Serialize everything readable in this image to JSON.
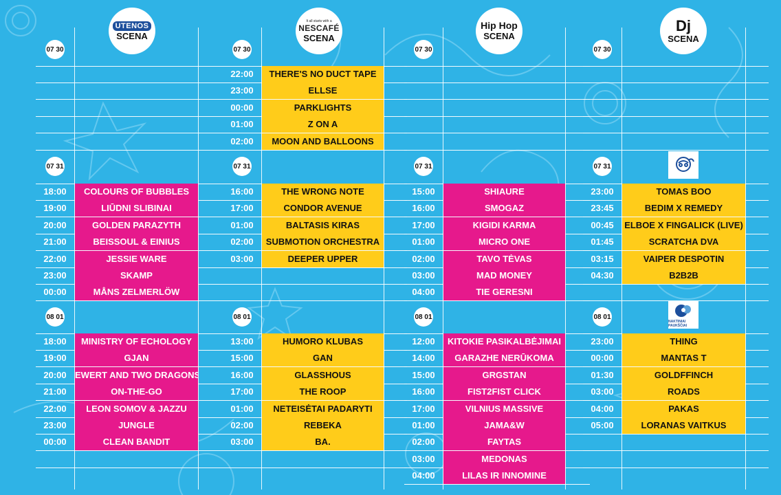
{
  "colors": {
    "background": "#2fb3e6",
    "pink": "#e6198c",
    "yellow": "#ffcc1a",
    "line": "#ffffff"
  },
  "stages": [
    {
      "id": "utenos",
      "brand": "UTENOS",
      "title": "",
      "scena": "SCENA",
      "tagline": ""
    },
    {
      "id": "nescafe",
      "brand": "NESCAFÉ",
      "tagline": "It all starts with a",
      "title": "",
      "scena": "SCENA"
    },
    {
      "id": "hiphop",
      "brand": "",
      "tagline": "",
      "title": "Hip Hop",
      "scena": "SCENA"
    },
    {
      "id": "dj",
      "brand": "",
      "tagline": "",
      "title": "Dj",
      "scena": "SCENA"
    }
  ],
  "dates": [
    "07 30",
    "07 31",
    "08 01"
  ],
  "dj_sponsor_logo_2_label": "NAKTINIAI PAUKŠČIAI",
  "schedule": {
    "utenos": {
      "d0730": [],
      "d0731": [
        {
          "time": "18:00",
          "artist": "COLOURS OF BUBBLES"
        },
        {
          "time": "19:00",
          "artist": "LIŪDNI SLIBINAI"
        },
        {
          "time": "20:00",
          "artist": "GOLDEN PARAZYTH"
        },
        {
          "time": "21:00",
          "artist": "BEISSOUL & EINIUS"
        },
        {
          "time": "22:00",
          "artist": "JESSIE WARE"
        },
        {
          "time": "23:00",
          "artist": "SKAMP"
        },
        {
          "time": "00:00",
          "artist": "MÅNS ZELMERLÖW"
        }
      ],
      "d0801": [
        {
          "time": "18:00",
          "artist": "MINISTRY OF ECHOLOGY"
        },
        {
          "time": "19:00",
          "artist": "GJAN"
        },
        {
          "time": "20:00",
          "artist": "EWERT AND TWO DRAGONS"
        },
        {
          "time": "21:00",
          "artist": "ON-THE-GO"
        },
        {
          "time": "22:00",
          "artist": "LEON SOMOV & JAZZU"
        },
        {
          "time": "23:00",
          "artist": "JUNGLE"
        },
        {
          "time": "00:00",
          "artist": "CLEAN BANDIT"
        }
      ]
    },
    "nescafe": {
      "d0730": [
        {
          "time": "22:00",
          "artist": "THERE'S NO DUCT TAPE"
        },
        {
          "time": "23:00",
          "artist": "ELLSE"
        },
        {
          "time": "00:00",
          "artist": "PARKLIGHTS"
        },
        {
          "time": "01:00",
          "artist": "Z ON A"
        },
        {
          "time": "02:00",
          "artist": "MOON AND BALLOONS"
        }
      ],
      "d0731": [
        {
          "time": "16:00",
          "artist": "THE WRONG NOTE"
        },
        {
          "time": "17:00",
          "artist": "CONDOR AVENUE"
        },
        {
          "time": "01:00",
          "artist": "BALTASIS KIRAS"
        },
        {
          "time": "02:00",
          "artist": "SUBMOTION ORCHESTRA"
        },
        {
          "time": "03:00",
          "artist": "DEEPER UPPER"
        }
      ],
      "d0801": [
        {
          "time": "13:00",
          "artist": "HUMORO KLUBAS"
        },
        {
          "time": "15:00",
          "artist": "GAN"
        },
        {
          "time": "16:00",
          "artist": "GLASSHOUS"
        },
        {
          "time": "17:00",
          "artist": "THE ROOP"
        },
        {
          "time": "01:00",
          "artist": "NETEISĖTAI PADARYTI"
        },
        {
          "time": "02:00",
          "artist": "REBEKA"
        },
        {
          "time": "03:00",
          "artist": "BA."
        }
      ]
    },
    "hiphop": {
      "d0730": [],
      "d0731": [
        {
          "time": "15:00",
          "artist": "SHIAURE"
        },
        {
          "time": "16:00",
          "artist": "SMOGAZ"
        },
        {
          "time": "17:00",
          "artist": "KIGIDI KARMA"
        },
        {
          "time": "01:00",
          "artist": "MICRO ONE"
        },
        {
          "time": "02:00",
          "artist": "TAVO TĖVAS"
        },
        {
          "time": "03:00",
          "artist": "MAD MONEY"
        },
        {
          "time": "04:00",
          "artist": "TIE GERESNI"
        }
      ],
      "d0801": [
        {
          "time": "12:00",
          "artist": "KITOKIE PASIKALBĖJIMAI"
        },
        {
          "time": "14:00",
          "artist": "GARAZHE NERŪKOMA"
        },
        {
          "time": "15:00",
          "artist": "GRGSTAN"
        },
        {
          "time": "16:00",
          "artist": "FIST2FIST CLICK"
        },
        {
          "time": "17:00",
          "artist": "VILNIUS MASSIVE"
        },
        {
          "time": "01:00",
          "artist": "JAMA&W"
        },
        {
          "time": "02:00",
          "artist": "FAYTAS"
        },
        {
          "time": "03:00",
          "artist": "MEDONAS"
        },
        {
          "time": "04:00",
          "artist": "LILAS IR INNOMINE"
        }
      ]
    },
    "dj": {
      "d0730": [],
      "d0731": [
        {
          "time": "23:00",
          "artist": "TOMAS BOO"
        },
        {
          "time": "23:45",
          "artist": "BEDIM X REMEDY"
        },
        {
          "time": "00:45",
          "artist": "ELBOE X FINGALICK (LIVE)"
        },
        {
          "time": "01:45",
          "artist": "SCRATCHA DVA"
        },
        {
          "time": "03:15",
          "artist": "VAIPER DESPOTIN"
        },
        {
          "time": "04:30",
          "artist": "B2B2B"
        }
      ],
      "d0801": [
        {
          "time": "23:00",
          "artist": "THING"
        },
        {
          "time": "00:00",
          "artist": "MANTAS T"
        },
        {
          "time": "01:30",
          "artist": "GOLDFFINCH"
        },
        {
          "time": "03:00",
          "artist": "ROADS"
        },
        {
          "time": "04:00",
          "artist": "PAKAS"
        },
        {
          "time": "05:00",
          "artist": "LORANAS VAITKUS"
        }
      ]
    }
  }
}
